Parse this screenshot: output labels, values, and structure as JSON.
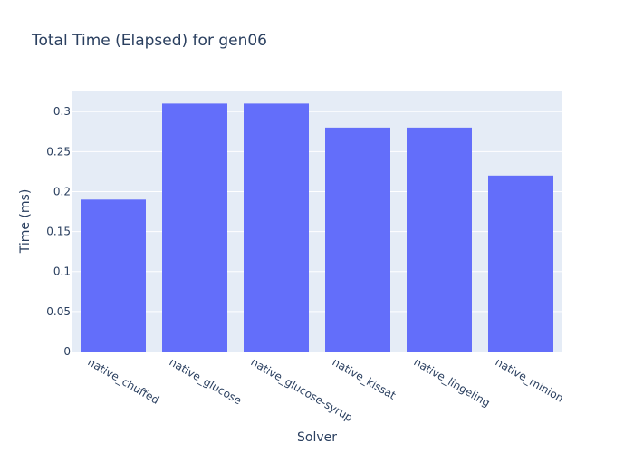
{
  "chart_data": {
    "type": "bar",
    "title": "Total Time (Elapsed) for gen06",
    "xlabel": "Solver",
    "ylabel": "Time (ms)",
    "categories": [
      "native_chuffed",
      "native_glucose",
      "native_glucose-syrup",
      "native_kissat",
      "native_lingeling",
      "native_minion"
    ],
    "values": [
      0.19,
      0.31,
      0.31,
      0.28,
      0.28,
      0.22
    ],
    "ylim": [
      0,
      0.3263
    ],
    "yticks": [
      0,
      0.05,
      0.1,
      0.15,
      0.2,
      0.25,
      0.3
    ],
    "ytick_labels": [
      "0",
      "0.05",
      "0.1",
      "0.15",
      "0.2",
      "0.25",
      "0.3"
    ],
    "grid": true,
    "legend": "none",
    "bar_color": "#636efa",
    "plot_bg": "#e5ecf6"
  }
}
